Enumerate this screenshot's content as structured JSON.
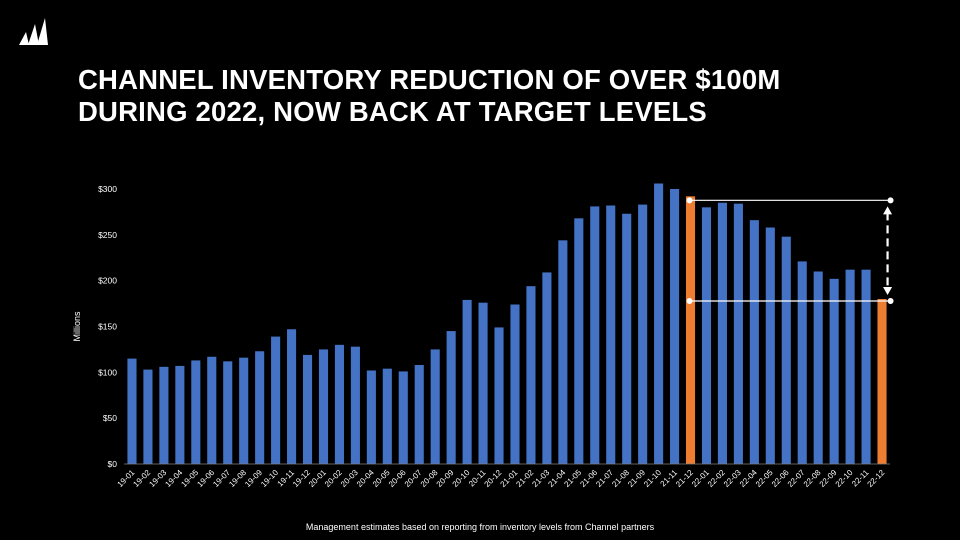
{
  "slide": {
    "title_line1": "CHANNEL INVENTORY REDUCTION OF OVER $100M",
    "title_line2": "DURING 2022, NOW BACK AT TARGET LEVELS",
    "footnote": "Management estimates based on reporting from inventory levels from Channel partners",
    "logo_icon": "sails-logo-icon"
  },
  "colors": {
    "background": "#000000",
    "bar": "#4472C4",
    "highlight": "#ED7D31",
    "text": "#ffffff",
    "annotation": "#ffffff"
  },
  "chart_data": {
    "type": "bar",
    "ylabel": "Millions",
    "ylim": [
      0,
      300
    ],
    "yticks": [
      {
        "value": 0,
        "label": "$0"
      },
      {
        "value": 50,
        "label": "$50"
      },
      {
        "value": 100,
        "label": "$100"
      },
      {
        "value": 150,
        "label": "$150"
      },
      {
        "value": 200,
        "label": "$200"
      },
      {
        "value": 250,
        "label": "$250"
      },
      {
        "value": 300,
        "label": "$300"
      }
    ],
    "grid": false,
    "categories": [
      "19-01",
      "19-02",
      "19-03",
      "19-04",
      "19-05",
      "19-06",
      "19-07",
      "19-08",
      "19-09",
      "19-10",
      "19-11",
      "19-12",
      "20-01",
      "20-02",
      "20-03",
      "20-04",
      "20-05",
      "20-06",
      "20-07",
      "20-08",
      "20-09",
      "20-10",
      "20-11",
      "20-12",
      "21-01",
      "21-02",
      "21-03",
      "21-04",
      "21-05",
      "21-06",
      "21-07",
      "21-08",
      "21-09",
      "21-10",
      "21-11",
      "21-12",
      "22-01",
      "22-02",
      "22-03",
      "22-04",
      "22-05",
      "22-06",
      "22-07",
      "22-08",
      "22-09",
      "22-10",
      "22-11",
      "22-12"
    ],
    "values": [
      115,
      103,
      106,
      107,
      113,
      117,
      112,
      116,
      123,
      139,
      147,
      119,
      125,
      130,
      128,
      102,
      104,
      101,
      108,
      125,
      145,
      179,
      176,
      149,
      174,
      194,
      209,
      244,
      268,
      281,
      282,
      273,
      283,
      306,
      300,
      292,
      280,
      285,
      284,
      266,
      258,
      248,
      221,
      210,
      202,
      212,
      212,
      180
    ],
    "highlighted": [
      "21-12",
      "22-12"
    ],
    "annotation": {
      "type": "reduction-bracket",
      "from_category": "21-12",
      "to_category": "22-12",
      "high_value": 292,
      "low_value": 180
    }
  }
}
